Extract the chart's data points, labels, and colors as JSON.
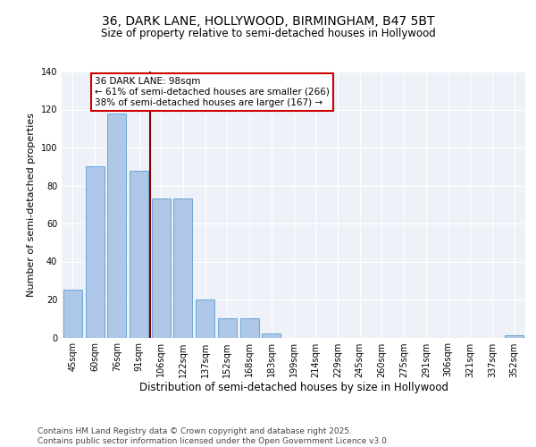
{
  "title1": "36, DARK LANE, HOLLYWOOD, BIRMINGHAM, B47 5BT",
  "title2": "Size of property relative to semi-detached houses in Hollywood",
  "xlabel": "Distribution of semi-detached houses by size in Hollywood",
  "ylabel": "Number of semi-detached properties",
  "categories": [
    "45sqm",
    "60sqm",
    "76sqm",
    "91sqm",
    "106sqm",
    "122sqm",
    "137sqm",
    "152sqm",
    "168sqm",
    "183sqm",
    "199sqm",
    "214sqm",
    "229sqm",
    "245sqm",
    "260sqm",
    "275sqm",
    "291sqm",
    "306sqm",
    "321sqm",
    "337sqm",
    "352sqm"
  ],
  "values": [
    25,
    90,
    118,
    88,
    73,
    73,
    20,
    10,
    10,
    2,
    0,
    0,
    0,
    0,
    0,
    0,
    0,
    0,
    0,
    0,
    1
  ],
  "bar_color": "#aec6e8",
  "bar_edge_color": "#5a9fd4",
  "vline_x": 3.5,
  "vline_color": "#8b0000",
  "annotation_title": "36 DARK LANE: 98sqm",
  "annotation_line1": "← 61% of semi-detached houses are smaller (266)",
  "annotation_line2": "38% of semi-detached houses are larger (167) →",
  "annotation_box_color": "#cc0000",
  "ylim": [
    0,
    140
  ],
  "footnote": "Contains HM Land Registry data © Crown copyright and database right 2025.\nContains public sector information licensed under the Open Government Licence v3.0.",
  "background_color": "#eef2f8"
}
